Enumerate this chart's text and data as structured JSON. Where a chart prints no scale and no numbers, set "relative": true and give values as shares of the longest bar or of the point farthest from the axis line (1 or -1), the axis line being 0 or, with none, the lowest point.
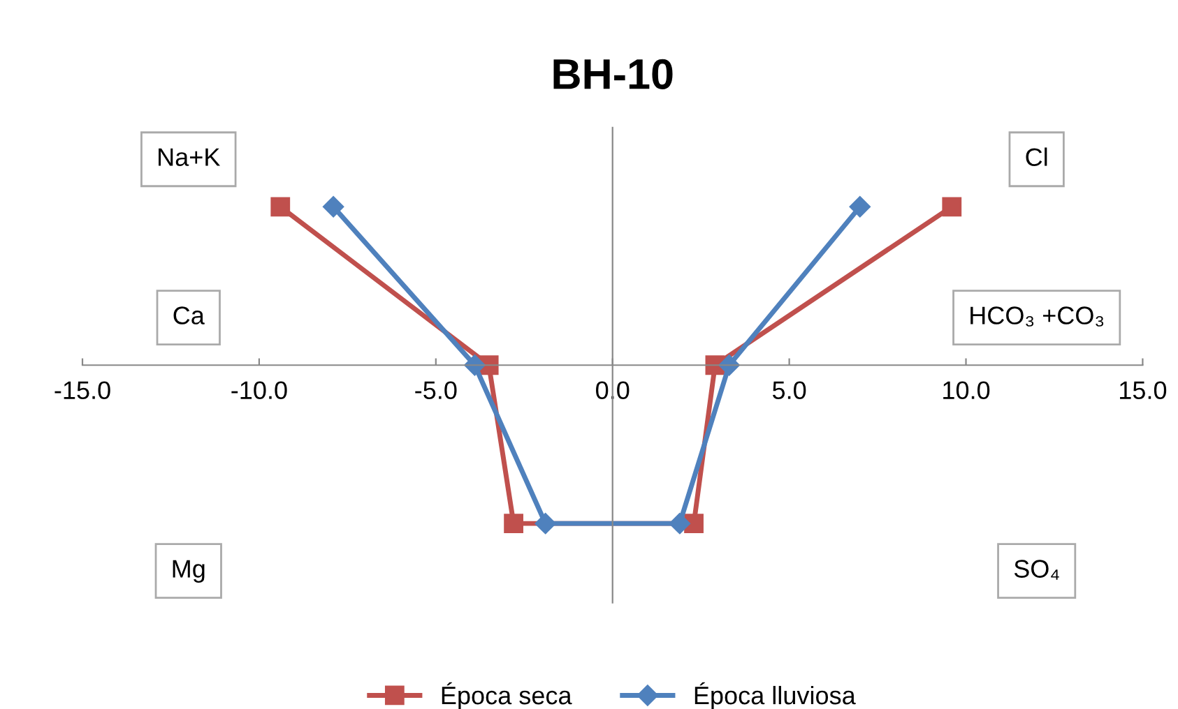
{
  "chart_data": {
    "type": "line",
    "title": "BH-10",
    "relative": true,
    "series": [
      {
        "name": "Época seca",
        "color": "#c0504d",
        "marker": "square",
        "x": [
          -9.4,
          -3.5,
          -2.8,
          2.3,
          2.9,
          9.6
        ],
        "values": [
          1,
          0,
          -1,
          -1,
          0,
          1
        ]
      },
      {
        "name": "Época lluviosa",
        "color": "#4f81bd",
        "marker": "diamond",
        "x": [
          -7.9,
          -3.9,
          -1.9,
          1.9,
          3.3,
          7.0
        ],
        "values": [
          1,
          0,
          -1,
          -1,
          0,
          1
        ]
      }
    ],
    "xlim": [
      -15,
      15
    ],
    "xticks": [
      {
        "value": -15,
        "label": "-15.0"
      },
      {
        "value": -10,
        "label": "-10.0"
      },
      {
        "value": -5,
        "label": "-5.0"
      },
      {
        "value": 0,
        "label": "0.0"
      },
      {
        "value": 5,
        "label": "5.0"
      },
      {
        "value": 10,
        "label": "10.0"
      },
      {
        "value": 15,
        "label": "15.0"
      }
    ],
    "annotations": [
      "Na+K",
      "Ca",
      "Mg",
      "SO₄",
      "HCO₃ +CO₃",
      "Cl"
    ],
    "legend": "bottom",
    "line_style": "solid"
  }
}
